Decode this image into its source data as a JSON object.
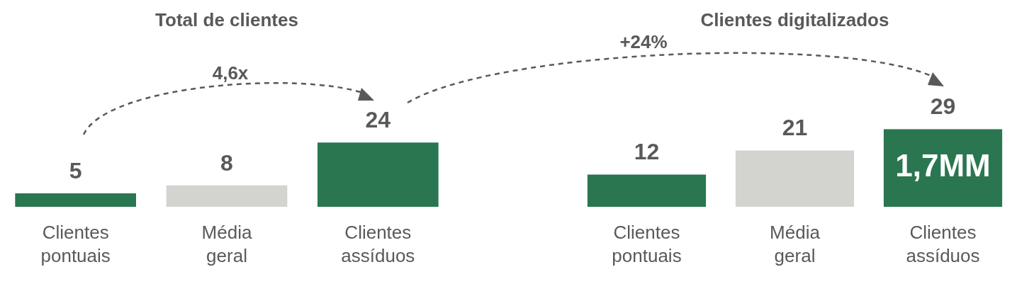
{
  "chart_data": [
    {
      "type": "bar",
      "title": "Total de clientes",
      "categories": [
        "Clientes pontuais",
        "Média geral",
        "Clientes assíduos"
      ],
      "values": [
        5,
        8,
        24
      ],
      "colors": [
        "#2a7650",
        "#d3d3cf",
        "#2a7650"
      ],
      "data_labels": true,
      "legend": false,
      "grid": false,
      "tick_labels": "x",
      "annotations": [
        "4,6x"
      ]
    },
    {
      "type": "bar",
      "title": "Clientes digitalizados",
      "categories": [
        "Clientes pontuais",
        "Média geral",
        "Clientes assíduos"
      ],
      "values": [
        12,
        21,
        29
      ],
      "colors": [
        "#2a7650",
        "#d3d3cf",
        "#2a7650"
      ],
      "data_labels": true,
      "legend": false,
      "grid": false,
      "tick_labels": "x",
      "annotations": [
        "+24%",
        "1,7MM"
      ]
    }
  ]
}
